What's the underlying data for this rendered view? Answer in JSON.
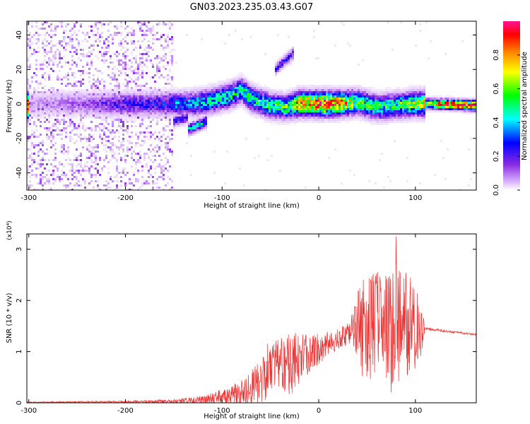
{
  "title": "GN03.2023.235.03.43.G07",
  "chart_data": [
    {
      "type": "heatmap",
      "xlabel": "Height of straight line (km)",
      "ylabel": "Frequency (Hz)",
      "xlim": [
        -302,
        163
      ],
      "ylim": [
        -50,
        48
      ],
      "xticks": [
        -300,
        -200,
        -100,
        0,
        100
      ],
      "xtick_labels": [
        "-300",
        "-200",
        "-100",
        "0",
        "100"
      ],
      "yticks": [
        -40,
        -20,
        0,
        20,
        40
      ],
      "ytick_labels": [
        "-40",
        "-20",
        "0",
        "20",
        "40"
      ],
      "grid": false,
      "colorbar": {
        "label": "Normalized spectral amplitude",
        "range": [
          0,
          1
        ],
        "ticks": [
          0,
          0.2,
          0.4,
          0.6,
          0.8
        ],
        "tick_labels": [
          "0.0",
          "0.2",
          "0.4",
          "0.6",
          "0.8"
        ],
        "colors": [
          "#ffffff",
          "#d9b3ff",
          "#8a2be2",
          "#0000ff",
          "#00ffff",
          "#00ff00",
          "#ffff00",
          "#ff8000",
          "#ff0000",
          "#ff00a0"
        ]
      },
      "noise_region_x": [
        -302,
        -150
      ],
      "noise_amplitude": 0.12,
      "ridge": [
        {
          "x": -300,
          "f": 0,
          "a": 0.12
        },
        {
          "x": -230,
          "f": 0,
          "a": 0.2
        },
        {
          "x": -200,
          "f": 0,
          "a": 0.28
        },
        {
          "x": -160,
          "f": 0,
          "a": 0.3
        },
        {
          "x": -150,
          "f": 0,
          "a": 0.35
        },
        {
          "x": -130,
          "f": 0,
          "a": 0.4
        },
        {
          "x": -110,
          "f": 2,
          "a": 0.45
        },
        {
          "x": -90,
          "f": 5,
          "a": 0.5
        },
        {
          "x": -80,
          "f": 8,
          "a": 0.45
        },
        {
          "x": -70,
          "f": 3,
          "a": 0.5
        },
        {
          "x": -50,
          "f": -1,
          "a": 0.5
        },
        {
          "x": -35,
          "f": -2,
          "a": 0.5
        },
        {
          "x": -20,
          "f": 0,
          "a": 0.75
        },
        {
          "x": 0,
          "f": 0,
          "a": 0.85
        },
        {
          "x": 20,
          "f": 0,
          "a": 0.8
        },
        {
          "x": 40,
          "f": 1,
          "a": 0.55
        },
        {
          "x": 60,
          "f": -2,
          "a": 0.5
        },
        {
          "x": 80,
          "f": -1,
          "a": 0.5
        },
        {
          "x": 100,
          "f": 0,
          "a": 0.6
        },
        {
          "x": 120,
          "f": 0,
          "a": 0.75
        },
        {
          "x": 163,
          "f": -1,
          "a": 0.95
        }
      ],
      "features": [
        {
          "x": [
            -45,
            -25
          ],
          "f": [
            20,
            30
          ],
          "a": 0.3
        },
        {
          "x": [
            -135,
            -115
          ],
          "f": [
            -15,
            -10
          ],
          "a": 0.45
        },
        {
          "x": [
            -150,
            -135
          ],
          "f": [
            -10,
            -8
          ],
          "a": 0.3
        }
      ]
    },
    {
      "type": "line",
      "xlabel": "Height of straight line (km)",
      "ylabel": "SNR (10 * v/v)",
      "y_exponent_label": "(x10⁴)",
      "xlim": [
        -302,
        163
      ],
      "ylim": [
        0,
        3.3
      ],
      "xticks": [
        -300,
        -200,
        -100,
        0,
        100
      ],
      "xtick_labels": [
        "-300",
        "-200",
        "-100",
        "0",
        "100"
      ],
      "yticks": [
        0,
        1,
        2,
        3
      ],
      "ytick_labels": [
        "0",
        "1",
        "2",
        "3"
      ],
      "grid": false,
      "color": "#ee3333",
      "envelope": [
        {
          "x": -302,
          "base": 0.01,
          "amp": 0.01
        },
        {
          "x": -200,
          "base": 0.02,
          "amp": 0.02
        },
        {
          "x": -150,
          "base": 0.03,
          "amp": 0.04
        },
        {
          "x": -120,
          "base": 0.06,
          "amp": 0.08
        },
        {
          "x": -100,
          "base": 0.12,
          "amp": 0.15
        },
        {
          "x": -80,
          "base": 0.2,
          "amp": 0.25
        },
        {
          "x": -65,
          "base": 0.35,
          "amp": 0.4
        },
        {
          "x": -55,
          "base": 0.6,
          "amp": 0.55
        },
        {
          "x": -40,
          "base": 0.7,
          "amp": 0.6
        },
        {
          "x": -25,
          "base": 0.8,
          "amp": 0.6
        },
        {
          "x": -10,
          "base": 0.95,
          "amp": 0.4
        },
        {
          "x": 0,
          "base": 1.05,
          "amp": 0.3
        },
        {
          "x": 20,
          "base": 1.25,
          "amp": 0.2
        },
        {
          "x": 35,
          "base": 1.45,
          "amp": 0.3
        },
        {
          "x": 45,
          "base": 1.5,
          "amp": 1.0
        },
        {
          "x": 60,
          "base": 1.45,
          "amp": 1.1
        },
        {
          "x": 80,
          "base": 1.45,
          "amp": 1.3
        },
        {
          "x": 95,
          "base": 1.45,
          "amp": 1.0
        },
        {
          "x": 107,
          "base": 1.45,
          "amp": 0.6
        },
        {
          "x": 110,
          "base": 1.45,
          "amp": 0.03
        },
        {
          "x": 163,
          "base": 1.33,
          "amp": 0.02
        }
      ],
      "peak": {
        "x": 80,
        "y": 3.25
      }
    }
  ]
}
